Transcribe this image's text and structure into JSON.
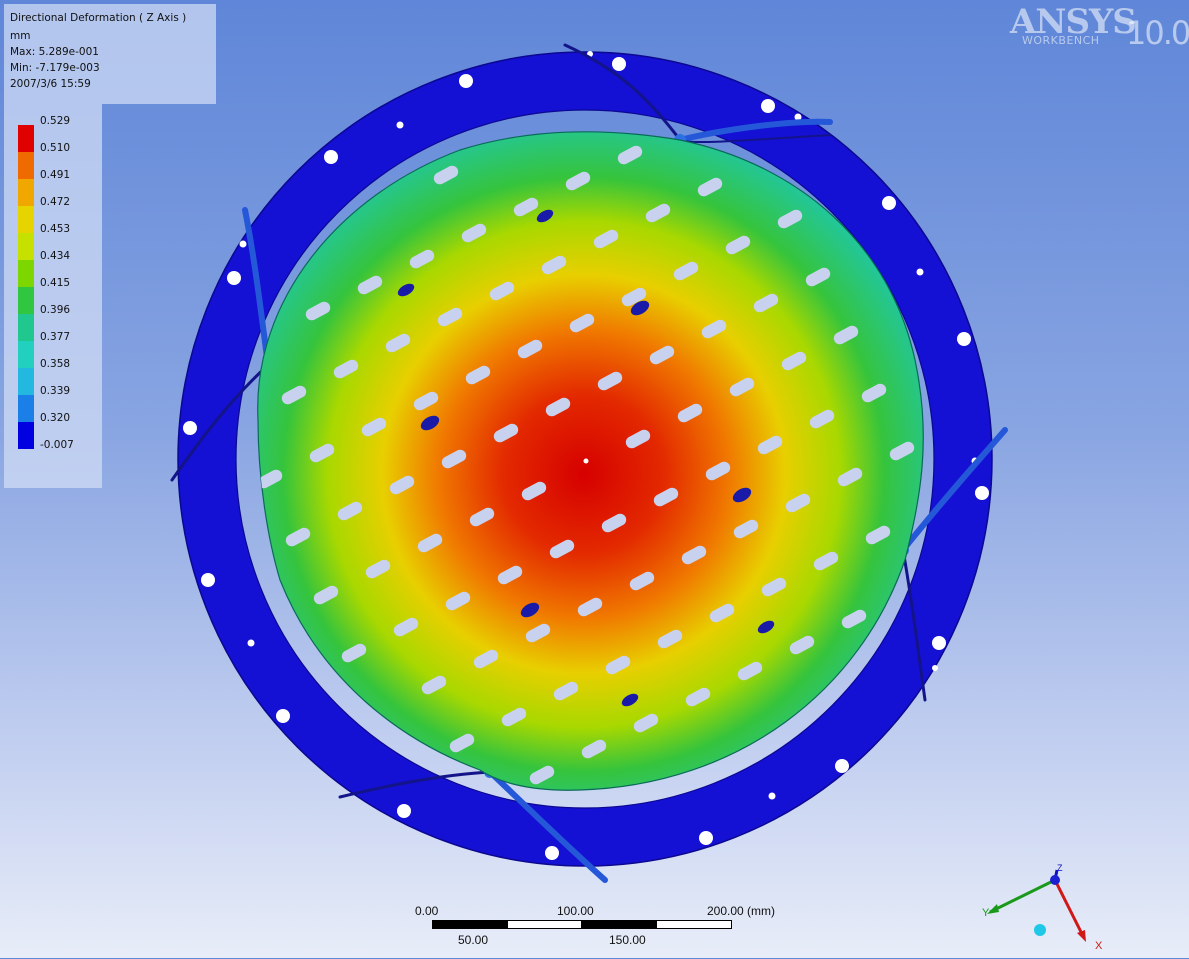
{
  "legend": {
    "title": "Directional Deformation ( Z Axis )",
    "unit": "mm",
    "max": "Max: 5.289e-001",
    "min": "Min: -7.179e-003",
    "timestamp": "2007/3/6 15:59",
    "ticks": [
      "0.529",
      "0.510",
      "0.491",
      "0.472",
      "0.453",
      "0.434",
      "0.415",
      "0.396",
      "0.377",
      "0.358",
      "0.339",
      "0.320",
      "-0.007"
    ],
    "colors": [
      "#e00000",
      "#ef6a00",
      "#f0a800",
      "#e6d400",
      "#c6e000",
      "#7ed600",
      "#30c640",
      "#20c890",
      "#22d0c0",
      "#22b8e0",
      "#1a80e8",
      "#0000e0"
    ]
  },
  "logo": {
    "brand": "ANSYS",
    "version": "10.0",
    "product": "WORKBENCH"
  },
  "scale_bar": {
    "labels_top": [
      "0.00",
      "100.00",
      "200.00 (mm)"
    ],
    "labels_bottom": [
      "50.00",
      "150.00"
    ]
  },
  "triad": {
    "x": "X",
    "y": "Y",
    "z": "Z"
  }
}
